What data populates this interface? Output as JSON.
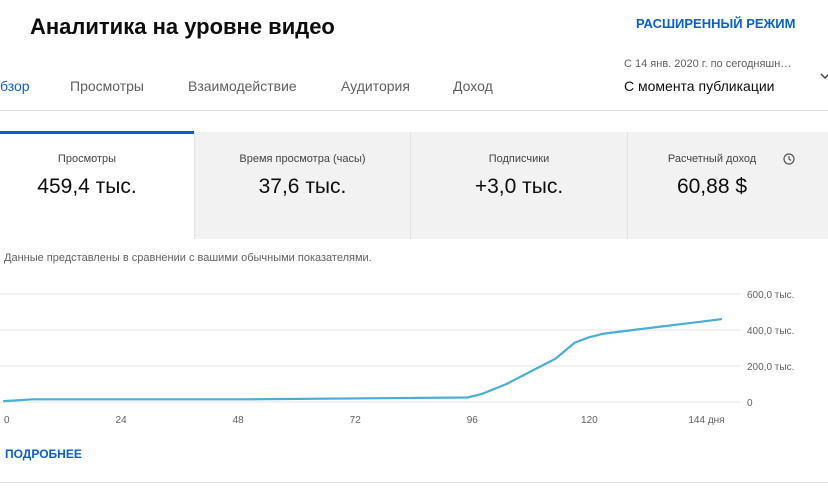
{
  "header": {
    "title": "Аналитика на уровне видео",
    "advanced_mode": "РАСШИРЕННЫЙ РЕЖИМ"
  },
  "tabs": [
    {
      "label": "бзор",
      "active": true
    },
    {
      "label": "Просмотры",
      "active": false
    },
    {
      "label": "Взаимодействие",
      "active": false
    },
    {
      "label": "Аудитория",
      "active": false
    },
    {
      "label": "Доход",
      "active": false
    }
  ],
  "date_range": {
    "subtitle": "С 14 янв. 2020 г. по сегодняшн…",
    "selected": "С момента публикации"
  },
  "metrics": [
    {
      "label": "Просмотры",
      "value": "459,4 тыс."
    },
    {
      "label": "Время просмотра (часы)",
      "value": "37,6 тыс."
    },
    {
      "label": "Подписчики",
      "value": "+3,0 тыс."
    },
    {
      "label": "Расчетный доход",
      "value": "60,88 $"
    }
  ],
  "note": "Данные представлены в сравнении с вашими обычными показателями.",
  "more_link": "ПОДРОБНЕЕ",
  "colors": {
    "accent": "#065fd4",
    "line": "#4aadd5",
    "card_bg": "#f2f2f2"
  },
  "icons": {
    "estimated_revenue_info": "clock-icon",
    "range_dropdown": "chevron-down-icon"
  },
  "chart_data": {
    "type": "line",
    "x_ticks": [
      {
        "value": 0,
        "label": "0"
      },
      {
        "value": 24,
        "label": "24"
      },
      {
        "value": 48,
        "label": "48"
      },
      {
        "value": 72,
        "label": "72"
      },
      {
        "value": 96,
        "label": "96"
      },
      {
        "value": 120,
        "label": "120"
      },
      {
        "value": 144,
        "label": "144 дня"
      }
    ],
    "y_ticks": [
      {
        "value": 0,
        "label": "0"
      },
      {
        "value": 200000,
        "label": "200,0 тыс."
      },
      {
        "value": 400000,
        "label": "400,0 тыс."
      },
      {
        "value": 600000,
        "label": "600,0 тыс."
      }
    ],
    "xlim": [
      0,
      148
    ],
    "ylim": [
      0,
      600000
    ],
    "grid": true,
    "series": [
      {
        "x": [
          0,
          6,
          50,
          95,
          98,
          103,
          108,
          113,
          117,
          120,
          123,
          129,
          135,
          141,
          147
        ],
        "y": [
          5000,
          15000,
          15000,
          25000,
          45000,
          100000,
          170000,
          240000,
          330000,
          360000,
          380000,
          400000,
          420000,
          440000,
          460000
        ]
      }
    ]
  }
}
